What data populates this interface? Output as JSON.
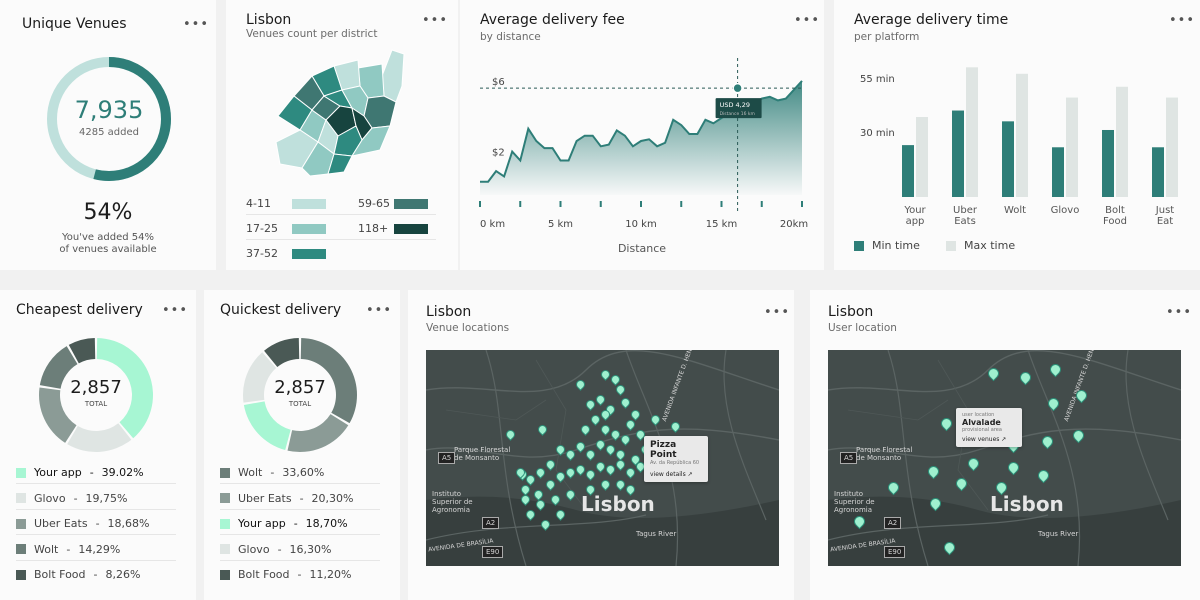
{
  "unique_venues": {
    "title": "Unique Venues",
    "value": "7,935",
    "added": "4285 added",
    "percent": "54%",
    "desc1": "You've added 54%",
    "desc2": "of venues available",
    "progress": 0.54
  },
  "lisbon_map": {
    "title": "Lisbon",
    "subtitle": "Venues count per district",
    "legend": [
      {
        "label": "4-11",
        "color": "#bfe0dc"
      },
      {
        "label": "59-65",
        "color": "#3f7772"
      },
      {
        "label": "17-25",
        "color": "#90c9c2"
      },
      {
        "label": "118+",
        "color": "#17443f"
      },
      {
        "label": "37-52",
        "color": "#2e8a80"
      }
    ]
  },
  "fee_chart": {
    "title": "Average delivery fee",
    "subtitle": "by distance",
    "tooltip_value": "USD 4,29",
    "tooltip_sub": "Distance 16 km"
  },
  "time_chart": {
    "title": "Average delivery time",
    "subtitle": "per platform",
    "legend_min": "Min time",
    "legend_max": "Max time"
  },
  "cheapest": {
    "title": "Cheapest delivery",
    "total": "2,857",
    "total_label": "TOTAL",
    "items": [
      {
        "name": "Your app",
        "value": "39.02%",
        "color": "#a7f6d3",
        "pct": 39.02
      },
      {
        "name": "Glovo",
        "value": "19,75%",
        "color": "#dfe5e3",
        "pct": 19.75
      },
      {
        "name": "Uber Eats",
        "value": "18,68%",
        "color": "#8b9b96",
        "pct": 18.68
      },
      {
        "name": "Wolt",
        "value": "14,29%",
        "color": "#6c7e79",
        "pct": 14.29
      },
      {
        "name": "Bolt Food",
        "value": "8,26%",
        "color": "#4a5955",
        "pct": 8.26
      }
    ]
  },
  "quickest": {
    "title": "Quickest delivery",
    "total": "2,857",
    "total_label": "TOTAL",
    "items": [
      {
        "name": "Wolt",
        "value": "33,60%",
        "color": "#6c7e79",
        "pct": 33.6
      },
      {
        "name": "Uber Eats",
        "value": "20,30%",
        "color": "#8b9b96",
        "pct": 20.3
      },
      {
        "name": "Your app",
        "value": "18,70%",
        "color": "#a7f6d3",
        "pct": 18.7
      },
      {
        "name": "Glovo",
        "value": "16,30%",
        "color": "#dfe5e3",
        "pct": 16.3
      },
      {
        "name": "Bolt Food",
        "value": "11,20%",
        "color": "#4a5955",
        "pct": 11.2
      }
    ]
  },
  "venue_map": {
    "title": "Lisbon",
    "subtitle": "Venue locations",
    "city": "Lisbon",
    "popup_title": "Pizza Point",
    "popup_sub": "Av. da República 60",
    "popup_link": "view details ↗",
    "labels": {
      "park": "Parque Florestal de Monsanto",
      "inst": "Instituto Superior de Agronomia",
      "river": "Tagus River",
      "avenue": "AVENIDA INFANTE D. HENRIQUE",
      "brasilia": "AVENIDA DE BRASÍLIA",
      "a2": "A2",
      "a5": "A5",
      "e90": "E90"
    }
  },
  "user_map": {
    "title": "Lisbon",
    "subtitle": "User location",
    "city": "Lisbon",
    "popup_small": "user location",
    "popup_title": "Alvalade",
    "popup_sub": "provisional area",
    "popup_link": "view venues ↗",
    "labels": {
      "park": "Parque Florestal de Monsanto",
      "inst": "Instituto Superior de Agronomia",
      "river": "Tagus River",
      "avenue": "AVENIDA INFANTE D. HENRIQUE",
      "brasilia": "AVENIDA DE BRASÍLIA",
      "a2": "A2",
      "a5": "A5",
      "e90": "E90"
    }
  },
  "chart_data": [
    {
      "type": "line",
      "title": "Average delivery fee",
      "subtitle": "by distance",
      "xlabel": "Distance",
      "x_ticks": [
        "0 km",
        "5 km",
        "10 km",
        "15 km",
        "20km"
      ],
      "y_ticks": [
        "$6",
        "$2"
      ],
      "x": [
        0,
        0.5,
        1,
        1.5,
        2,
        2.5,
        3,
        3.5,
        4,
        4.5,
        5,
        5.5,
        6,
        6.5,
        7,
        7.5,
        8,
        8.5,
        9,
        9.5,
        10,
        10.5,
        11,
        11.5,
        12,
        12.5,
        13,
        13.5,
        14,
        14.5,
        15,
        15.5,
        16,
        16.5,
        17,
        17.5,
        18,
        18.5,
        19,
        19.5,
        20
      ],
      "values": [
        0.3,
        0.3,
        0.9,
        0.6,
        2.0,
        1.5,
        3.3,
        2.6,
        2.2,
        2.2,
        1.5,
        1.5,
        2.6,
        2.9,
        2.9,
        2.3,
        2.4,
        3.2,
        2.9,
        2.3,
        2.6,
        2.7,
        2.3,
        2.5,
        3.8,
        3.5,
        3.0,
        3.0,
        3.8,
        3.6,
        3.9,
        4.2,
        4.3,
        4.6,
        4.7,
        5.0,
        5.1,
        4.9,
        5.0,
        5.5,
        6.0
      ],
      "annotation": {
        "x": 16,
        "y": 4.29,
        "text": "USD 4,29"
      }
    },
    {
      "type": "bar",
      "title": "Average delivery time",
      "subtitle": "per platform",
      "categories": [
        "Your app",
        "Uber Eats",
        "Wolt",
        "Glovo",
        "Bolt Food",
        "Just Eat"
      ],
      "y_ticks": [
        "55 min",
        "30 min"
      ],
      "series": [
        {
          "name": "Min time",
          "color": "#2e7e78",
          "values": [
            24,
            40,
            35,
            23,
            31,
            23
          ]
        },
        {
          "name": "Max time",
          "color": "#dfe5e3",
          "values": [
            37,
            60,
            57,
            46,
            51,
            46
          ]
        }
      ]
    },
    {
      "type": "pie",
      "title": "Cheapest delivery",
      "categories": [
        "Your app",
        "Glovo",
        "Uber Eats",
        "Wolt",
        "Bolt Food"
      ],
      "values": [
        39.02,
        19.75,
        18.68,
        14.29,
        8.26
      ]
    },
    {
      "type": "pie",
      "title": "Quickest delivery",
      "categories": [
        "Wolt",
        "Uber Eats",
        "Your app",
        "Glovo",
        "Bolt Food"
      ],
      "values": [
        33.6,
        20.3,
        18.7,
        16.3,
        11.2
      ]
    }
  ]
}
